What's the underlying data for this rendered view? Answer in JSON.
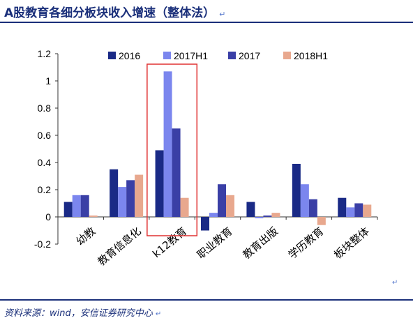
{
  "header": {
    "title": "A股教育各细分板块收入增速（整体法）",
    "title_mark": "↵"
  },
  "footer": {
    "source": "资料来源：wind，安信证券研究中心",
    "source_mark": "↵",
    "para_mark": "↵"
  },
  "colors": {
    "s2016": "#1a2a86",
    "s2017H1": "#7b86ee",
    "s2017": "#3a3fa6",
    "s2018H1": "#e8a88e",
    "highlight": "#e03030",
    "rule": "#1a2f7a"
  },
  "chart_data": {
    "type": "bar",
    "categories": [
      "幼教",
      "教育信息化",
      "k12教育",
      "职业教育",
      "教育出版",
      "学历教育",
      "板块整体"
    ],
    "series": [
      {
        "name": "2016",
        "color": "#1a2a86",
        "values": [
          0.11,
          0.35,
          0.49,
          -0.1,
          0.11,
          0.39,
          0.14
        ]
      },
      {
        "name": "2017H1",
        "color": "#7b86ee",
        "values": [
          0.16,
          0.22,
          1.07,
          0.03,
          -0.01,
          0.24,
          0.07
        ]
      },
      {
        "name": "2017",
        "color": "#3a3fa6",
        "values": [
          0.16,
          0.27,
          0.65,
          0.24,
          0.01,
          0.13,
          0.1
        ]
      },
      {
        "name": "2018H1",
        "color": "#e8a88e",
        "values": [
          0.01,
          0.31,
          0.14,
          0.16,
          0.03,
          -0.06,
          0.09
        ]
      }
    ],
    "ylim": [
      -0.2,
      1.2
    ],
    "yticks": [
      "-0.2",
      "0",
      "0.2",
      "0.4",
      "0.6",
      "0.8",
      "1",
      "1.2"
    ],
    "legend_position": "top",
    "highlighted_category": "k12教育",
    "grid": false
  }
}
